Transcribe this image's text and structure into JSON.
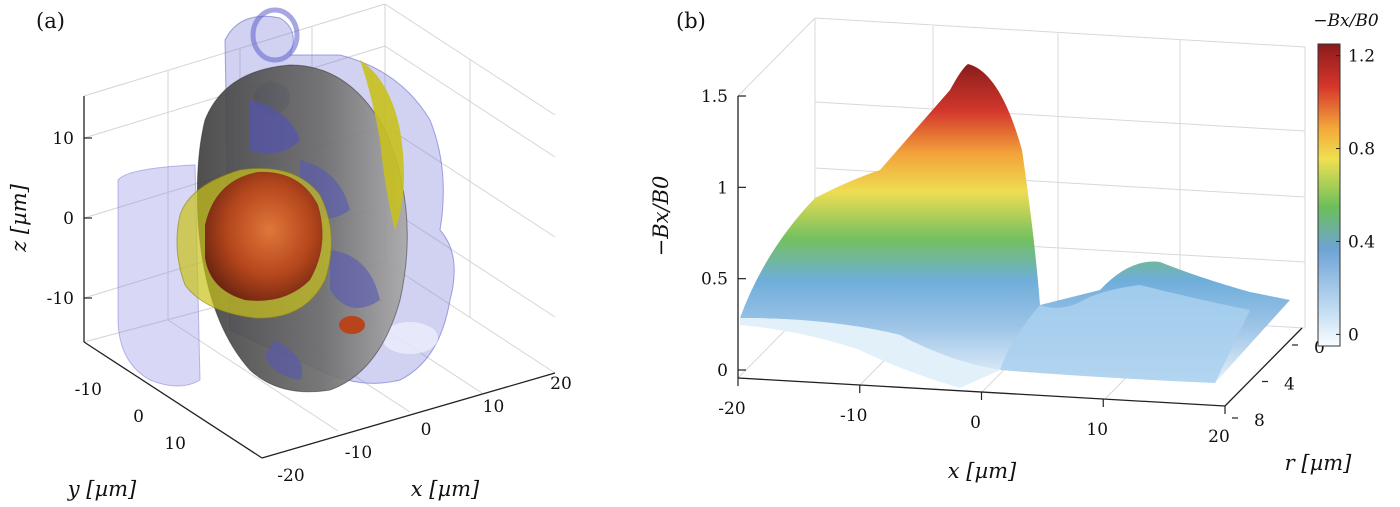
{
  "chart_data": [
    {
      "panel": "(a)",
      "type": "isosurface-3d",
      "xlabel": "x [µm]",
      "ylabel": "y [µm]",
      "zlabel": "z [µm]",
      "x_ticks": [
        "-20",
        "-10",
        "0",
        "10",
        "20"
      ],
      "y_ticks": [
        "-10",
        "0",
        "10"
      ],
      "z_ticks": [
        "10",
        "0",
        "-10"
      ],
      "xlim": [
        -20,
        20
      ],
      "ylim": [
        -15,
        15
      ],
      "zlim": [
        -15,
        15
      ],
      "grid": true,
      "surfaces": [
        {
          "color": "#6e6ed8",
          "opacity": 0.35
        },
        {
          "color": "#c9c21a",
          "opacity": 0.6
        },
        {
          "color": "#5a5a5a",
          "opacity": 0.75
        },
        {
          "color": "#b8441c",
          "opacity": 0.95
        }
      ]
    },
    {
      "panel": "(b)",
      "type": "surface-3d",
      "xlabel": "x [µm]",
      "ylabel": "r [µm]",
      "zlabel": "−Bx/B0",
      "x_ticks": [
        "-20",
        "-10",
        "0",
        "10",
        "20"
      ],
      "r_ticks": [
        "0",
        "4",
        "8"
      ],
      "z_ticks": [
        "0",
        "0.5",
        "1",
        "1.5"
      ],
      "xlim": [
        -20,
        20
      ],
      "rlim": [
        0,
        9
      ],
      "zlim": [
        0,
        1.6
      ],
      "grid": true,
      "colorbar": {
        "title": "−Bx/B0",
        "ticks": [
          "1.2",
          "0.8",
          "0.4",
          "0"
        ],
        "range": [
          -0.05,
          1.25
        ],
        "colors": [
          "#fbfdff",
          "#c9e2f4",
          "#6fa3d6",
          "#6cbf5b",
          "#f0e050",
          "#f3a93b",
          "#d6352b",
          "#8c1b1b"
        ]
      },
      "surface_profile_r0": {
        "x": [
          -20,
          -15,
          -10,
          -5,
          0,
          2,
          3,
          5,
          8,
          12,
          15,
          20
        ],
        "z": [
          0.28,
          0.82,
          0.9,
          1.15,
          1.45,
          1.55,
          0.05,
          0.12,
          0.35,
          0.58,
          0.5,
          0.3
        ]
      }
    }
  ]
}
